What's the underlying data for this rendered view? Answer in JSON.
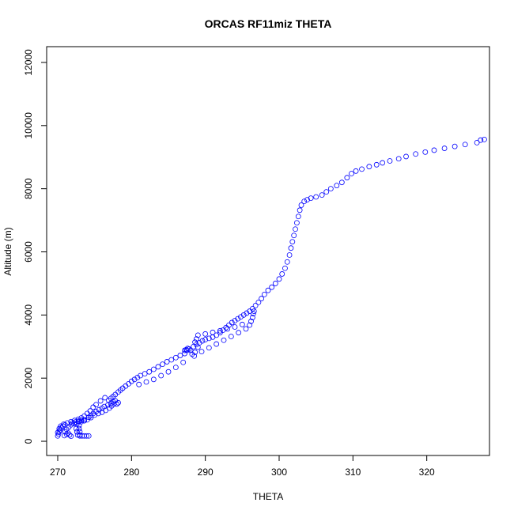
{
  "chart_data": {
    "type": "scatter",
    "title": "ORCAS RF11miz THETA",
    "xlabel": "THETA",
    "ylabel": "Altitude (m)",
    "xlim": [
      268.5,
      328.5
    ],
    "ylim": [
      -450,
      12500
    ],
    "xticks": [
      270,
      280,
      290,
      300,
      310,
      320
    ],
    "yticks": [
      0,
      2000,
      4000,
      6000,
      8000,
      10000,
      12000
    ],
    "marker": "open-circle",
    "color": "#0000ff",
    "grid": false,
    "legend": "none",
    "series": [
      {
        "points": [
          [
            270.0,
            170
          ],
          [
            270.1,
            230
          ],
          [
            270.2,
            300
          ],
          [
            270.3,
            360
          ],
          [
            270.5,
            430
          ],
          [
            270.7,
            480
          ],
          [
            271.0,
            520
          ],
          [
            270.9,
            180
          ],
          [
            271.2,
            220
          ],
          [
            271.0,
            300
          ],
          [
            271.2,
            380
          ],
          [
            271.5,
            450
          ],
          [
            271.8,
            520
          ],
          [
            272.0,
            580
          ],
          [
            272.4,
            610
          ],
          [
            272.8,
            640
          ],
          [
            273.2,
            660
          ],
          [
            273.6,
            680
          ],
          [
            272.9,
            620
          ],
          [
            272.9,
            500
          ],
          [
            272.9,
            400
          ],
          [
            273.0,
            300
          ],
          [
            273.0,
            200
          ],
          [
            273.0,
            170
          ],
          [
            273.3,
            170
          ],
          [
            273.6,
            170
          ],
          [
            273.9,
            170
          ],
          [
            274.2,
            170
          ],
          [
            272.2,
            560
          ],
          [
            272.6,
            560
          ],
          [
            273.2,
            620
          ],
          [
            273.6,
            650
          ],
          [
            274.0,
            680
          ],
          [
            274.5,
            750
          ],
          [
            275.0,
            830
          ],
          [
            275.5,
            880
          ],
          [
            276.0,
            920
          ],
          [
            276.5,
            980
          ],
          [
            277.0,
            1050
          ],
          [
            277.3,
            1120
          ],
          [
            277.6,
            1180
          ],
          [
            278.0,
            1180
          ],
          [
            278.2,
            1220
          ],
          [
            277.8,
            1280
          ],
          [
            277.5,
            1250
          ],
          [
            277.2,
            1200
          ],
          [
            276.8,
            1150
          ],
          [
            276.3,
            1100
          ],
          [
            276.0,
            1050
          ],
          [
            275.6,
            1000
          ],
          [
            275.2,
            940
          ],
          [
            274.8,
            880
          ],
          [
            274.5,
            820
          ],
          [
            274.2,
            760
          ],
          [
            276.9,
            1300
          ],
          [
            277.2,
            1360
          ],
          [
            277.5,
            1420
          ],
          [
            277.8,
            1480
          ],
          [
            278.2,
            1560
          ],
          [
            278.5,
            1620
          ],
          [
            278.8,
            1680
          ],
          [
            279.2,
            1750
          ],
          [
            279.6,
            1820
          ],
          [
            280.0,
            1900
          ],
          [
            280.4,
            1960
          ],
          [
            280.8,
            2020
          ],
          [
            281.2,
            2080
          ],
          [
            281.8,
            2140
          ],
          [
            282.4,
            2200
          ],
          [
            283.0,
            2280
          ],
          [
            283.6,
            2360
          ],
          [
            284.2,
            2440
          ],
          [
            284.8,
            2520
          ],
          [
            285.4,
            2580
          ],
          [
            286.0,
            2650
          ],
          [
            286.6,
            2720
          ],
          [
            287.2,
            2780
          ],
          [
            287.5,
            2880
          ],
          [
            287.8,
            2920
          ],
          [
            288.0,
            2880
          ],
          [
            287.4,
            2900
          ],
          [
            287.2,
            2880
          ],
          [
            287.6,
            2940
          ],
          [
            288.4,
            3000
          ],
          [
            288.8,
            3060
          ],
          [
            289.2,
            3120
          ],
          [
            289.6,
            3180
          ],
          [
            290.0,
            3220
          ],
          [
            290.5,
            3260
          ],
          [
            291.0,
            3300
          ],
          [
            291.5,
            3360
          ],
          [
            292.0,
            3440
          ],
          [
            292.4,
            3520
          ],
          [
            292.8,
            3600
          ],
          [
            293.2,
            3680
          ],
          [
            293.6,
            3760
          ],
          [
            294.0,
            3820
          ],
          [
            294.4,
            3880
          ],
          [
            294.8,
            3940
          ],
          [
            295.2,
            4000
          ],
          [
            295.6,
            4060
          ],
          [
            296.0,
            4120
          ],
          [
            296.4,
            4200
          ],
          [
            296.8,
            4300
          ],
          [
            297.2,
            4400
          ],
          [
            297.6,
            4520
          ],
          [
            298.0,
            4650
          ],
          [
            298.5,
            4780
          ],
          [
            299.0,
            4880
          ],
          [
            299.5,
            5000
          ],
          [
            300.0,
            5140
          ],
          [
            300.4,
            5300
          ],
          [
            300.8,
            5480
          ],
          [
            301.1,
            5680
          ],
          [
            301.4,
            5900
          ],
          [
            301.6,
            6120
          ],
          [
            301.8,
            6320
          ],
          [
            302.0,
            6520
          ],
          [
            302.2,
            6720
          ],
          [
            302.4,
            6920
          ],
          [
            302.6,
            7120
          ],
          [
            302.8,
            7320
          ],
          [
            303.0,
            7480
          ],
          [
            303.4,
            7600
          ],
          [
            303.8,
            7650
          ],
          [
            304.3,
            7700
          ],
          [
            305.0,
            7740
          ],
          [
            305.8,
            7800
          ],
          [
            306.4,
            7900
          ],
          [
            307.0,
            8000
          ],
          [
            307.8,
            8100
          ],
          [
            308.5,
            8200
          ],
          [
            309.2,
            8350
          ],
          [
            309.8,
            8480
          ],
          [
            310.4,
            8560
          ],
          [
            311.2,
            8620
          ],
          [
            312.2,
            8700
          ],
          [
            313.2,
            8760
          ],
          [
            314.0,
            8820
          ],
          [
            315.0,
            8880
          ],
          [
            316.2,
            8950
          ],
          [
            317.2,
            9020
          ],
          [
            318.5,
            9100
          ],
          [
            319.8,
            9160
          ],
          [
            321.0,
            9220
          ],
          [
            322.4,
            9280
          ],
          [
            323.8,
            9340
          ],
          [
            325.2,
            9400
          ],
          [
            326.8,
            9460
          ],
          [
            327.3,
            9540
          ],
          [
            327.8,
            9560
          ],
          [
            281.0,
            1800
          ],
          [
            282.0,
            1880
          ],
          [
            283.0,
            1960
          ],
          [
            284.0,
            2080
          ],
          [
            285.0,
            2200
          ],
          [
            286.0,
            2340
          ],
          [
            287.0,
            2500
          ],
          [
            288.5,
            2700
          ],
          [
            289.5,
            2840
          ],
          [
            290.5,
            2960
          ],
          [
            291.5,
            3080
          ],
          [
            292.5,
            3200
          ],
          [
            293.5,
            3320
          ],
          [
            294.5,
            3440
          ],
          [
            295.5,
            3560
          ],
          [
            296.0,
            3680
          ],
          [
            296.2,
            3800
          ],
          [
            296.4,
            3920
          ],
          [
            296.5,
            4040
          ],
          [
            296.6,
            4120
          ],
          [
            295.0,
            3700
          ],
          [
            294.0,
            3620
          ],
          [
            293.0,
            3560
          ],
          [
            292.0,
            3500
          ],
          [
            291.0,
            3450
          ],
          [
            290.0,
            3400
          ],
          [
            289.0,
            3360
          ],
          [
            288.8,
            3240
          ],
          [
            288.6,
            3140
          ],
          [
            289.0,
            2980
          ],
          [
            288.6,
            2820
          ],
          [
            288.2,
            2760
          ],
          [
            276.4,
            1380
          ],
          [
            275.8,
            1280
          ],
          [
            275.2,
            1160
          ],
          [
            274.8,
            1080
          ],
          [
            274.4,
            960
          ],
          [
            274.0,
            880
          ],
          [
            273.6,
            800
          ],
          [
            273.2,
            740
          ],
          [
            272.8,
            700
          ],
          [
            272.3,
            660
          ],
          [
            271.8,
            620
          ],
          [
            271.3,
            580
          ],
          [
            270.8,
            540
          ],
          [
            270.4,
            480
          ],
          [
            270.2,
            400
          ],
          [
            270.0,
            280
          ],
          [
            271.4,
            260
          ],
          [
            271.6,
            200
          ],
          [
            271.8,
            160
          ],
          [
            272.5,
            400
          ],
          [
            272.6,
            300
          ],
          [
            272.7,
            200
          ]
        ]
      }
    ]
  }
}
